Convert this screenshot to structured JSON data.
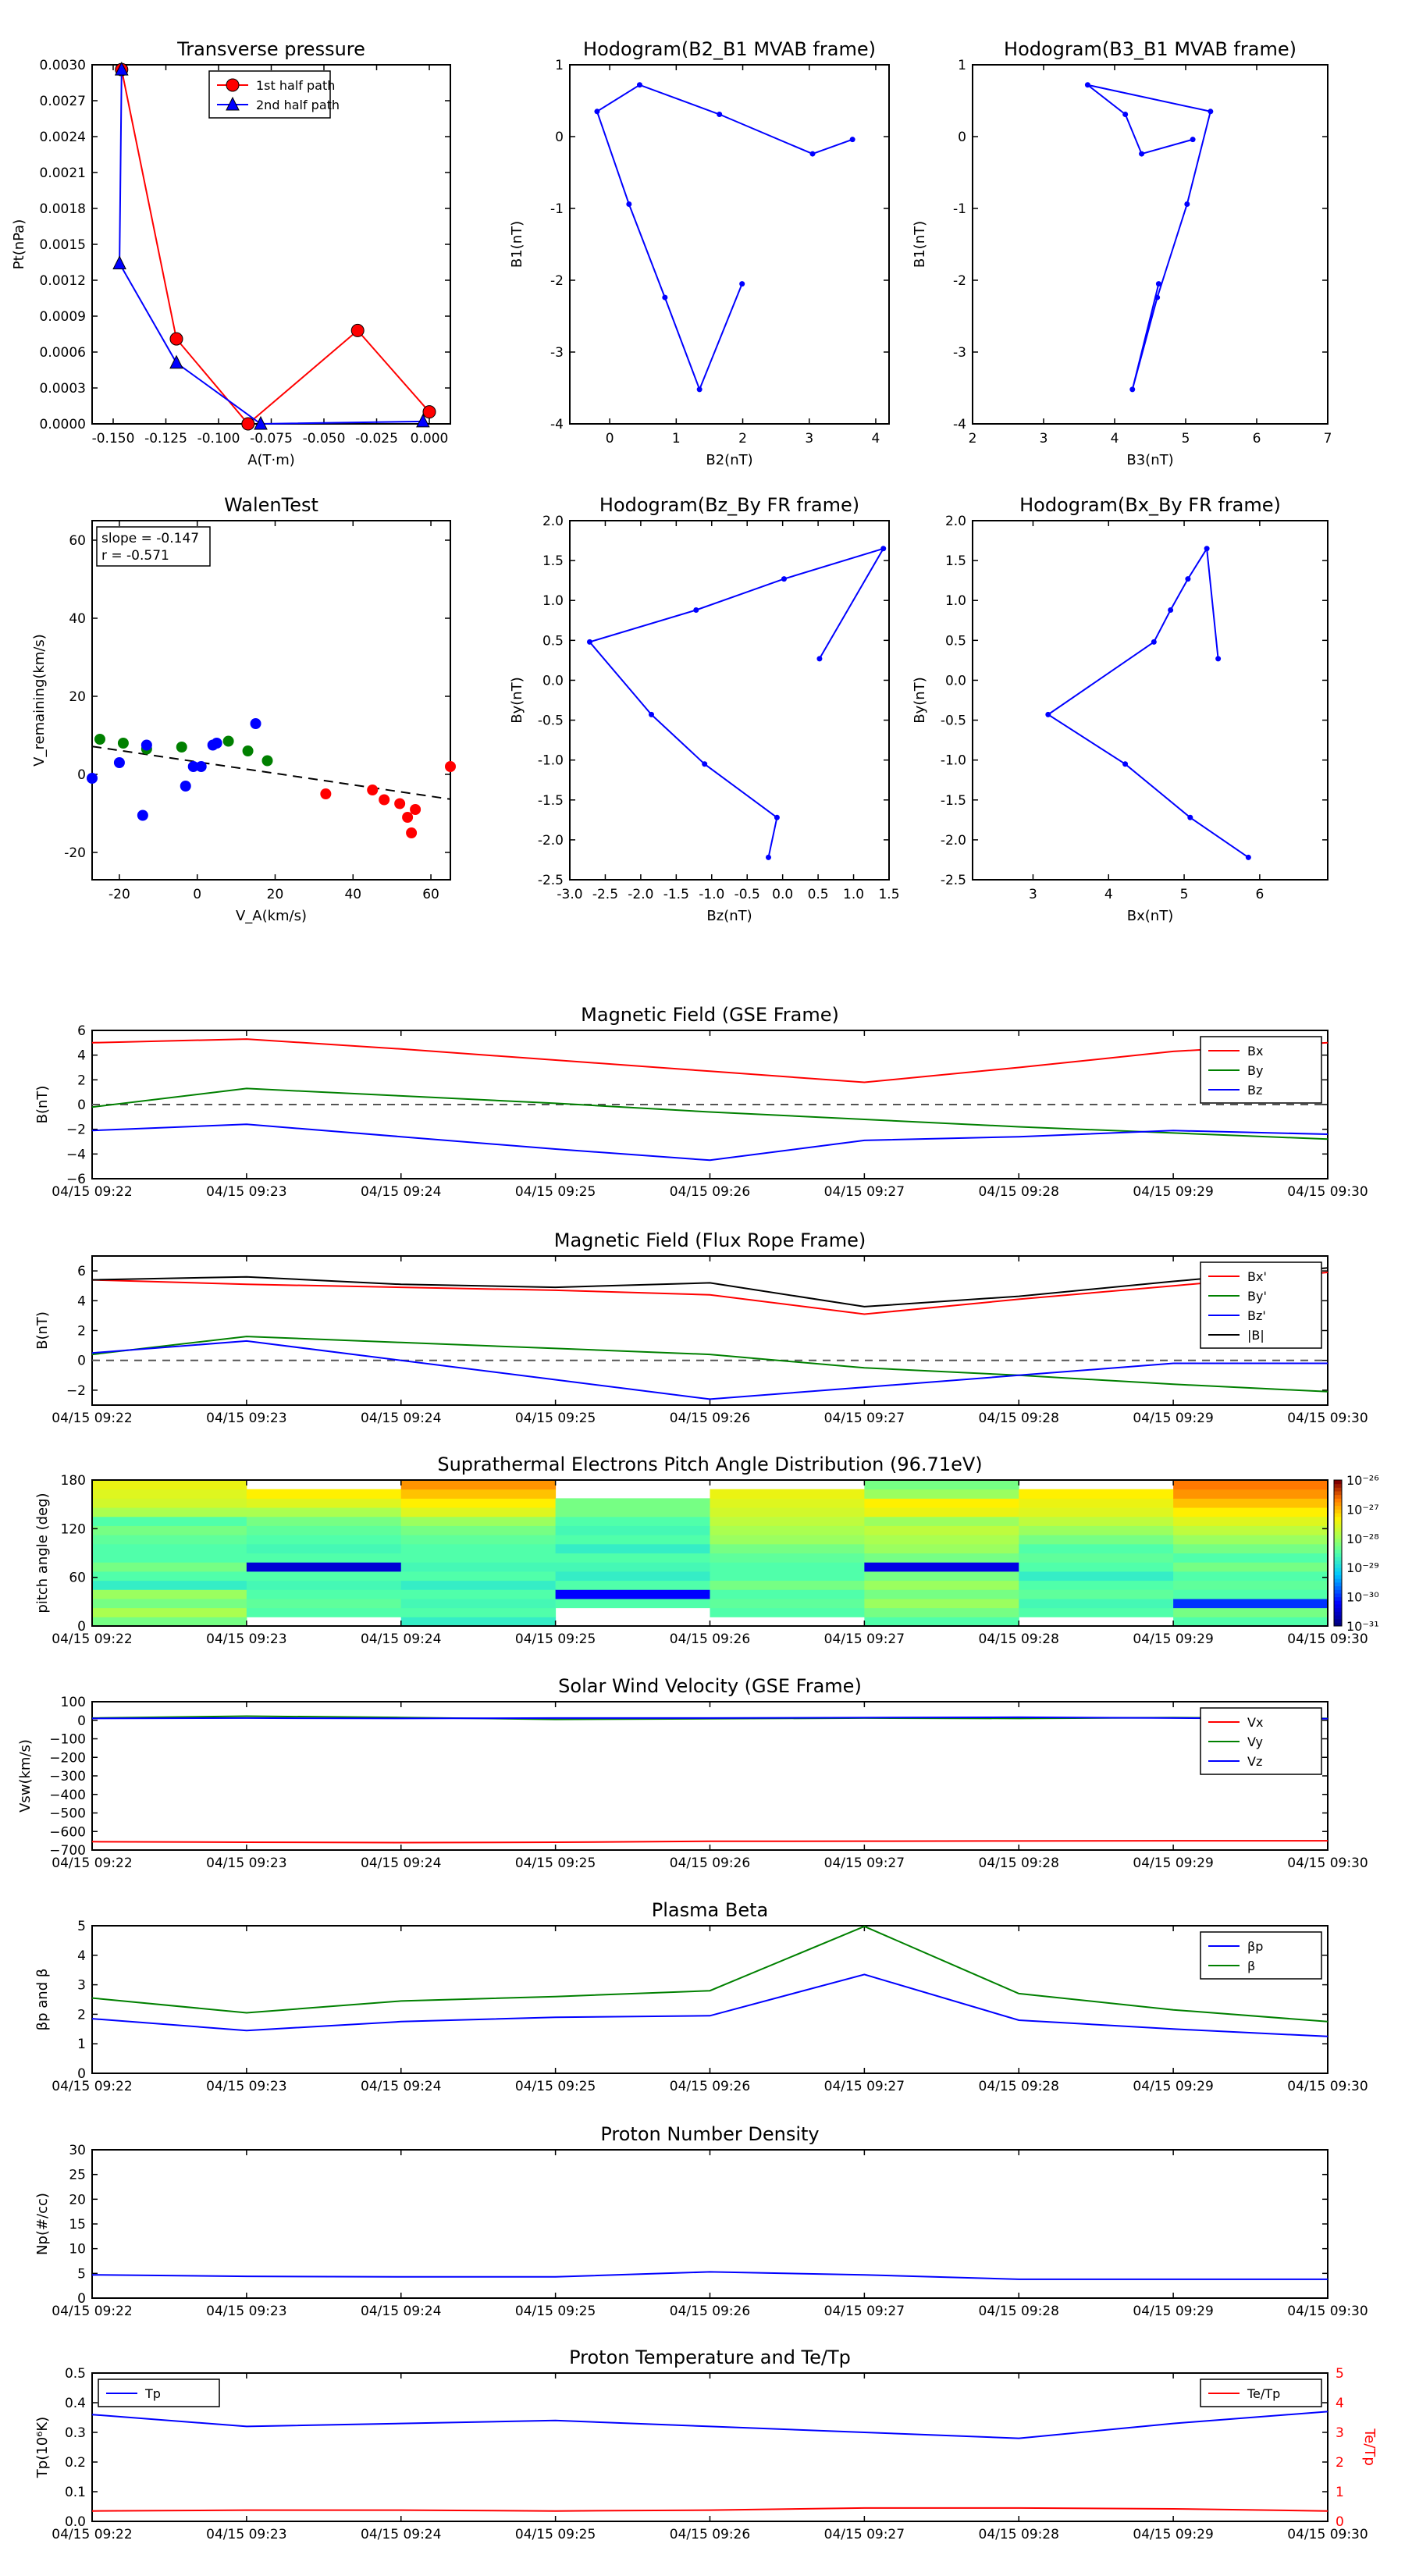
{
  "chart_data": [
    {
      "type": "line",
      "title": "Transverse pressure",
      "xlabel": "A(T·m)",
      "ylabel": "Pt(nPa)",
      "xlim": [
        -0.16,
        0.01
      ],
      "ylim": [
        0,
        0.003
      ],
      "xticks": [
        "-0.150",
        "-0.125",
        "-0.100",
        "-0.075",
        "-0.050",
        "-0.025",
        "0.000"
      ],
      "yticks": [
        "0.0000",
        "0.0003",
        "0.0006",
        "0.0009",
        "0.0012",
        "0.0015",
        "0.0018",
        "0.0021",
        "0.0024",
        "0.0027",
        "0.0030"
      ],
      "legend": {
        "position": "top-center",
        "entries": [
          "1st half path",
          "2nd half path"
        ]
      },
      "series": [
        {
          "name": "1st half path",
          "color": "#ff0000",
          "marker": "circle",
          "x": [
            0.0,
            -0.034,
            -0.086,
            -0.12,
            -0.146
          ],
          "y": [
            0.0001,
            0.00078,
            0.0,
            0.00071,
            0.00296
          ]
        },
        {
          "name": "2nd half path",
          "color": "#0000ff",
          "marker": "triangle",
          "x": [
            -0.146,
            -0.147,
            -0.12,
            -0.08,
            -0.003
          ],
          "y": [
            0.00296,
            0.00134,
            0.00051,
            0.0,
            2e-05
          ]
        }
      ]
    },
    {
      "type": "line",
      "title": "Hodogram(B2_B1 MVAB frame)",
      "xlabel": "B2(nT)",
      "ylabel": "B1(nT)",
      "xlim": [
        -0.6,
        4.2
      ],
      "ylim": [
        -4,
        1
      ],
      "xticks": [
        "0",
        "1",
        "2",
        "3",
        "4"
      ],
      "yticks": [
        "-4",
        "-3",
        "-2",
        "-1",
        "0",
        "1"
      ],
      "series": [
        {
          "color": "#0000ff",
          "x": [
            1.99,
            1.35,
            0.83,
            0.29,
            -0.19,
            0.45,
            1.65,
            3.05,
            3.65
          ],
          "y": [
            -2.05,
            -3.52,
            -2.24,
            -0.94,
            0.35,
            0.72,
            0.31,
            -0.24,
            -0.04
          ]
        }
      ]
    },
    {
      "type": "line",
      "title": "Hodogram(B3_B1 MVAB frame)",
      "xlabel": "B3(nT)",
      "ylabel": "B1(nT)",
      "xlim": [
        2,
        7
      ],
      "ylim": [
        -4,
        1
      ],
      "xticks": [
        "2",
        "3",
        "4",
        "5",
        "6",
        "7"
      ],
      "yticks": [
        "-4",
        "-3",
        "-2",
        "-1",
        "0",
        "1"
      ],
      "series": [
        {
          "color": "#0000ff",
          "x": [
            4.62,
            4.25,
            4.6,
            5.02,
            5.35,
            3.62,
            4.15,
            4.38,
            5.1
          ],
          "y": [
            -2.05,
            -3.52,
            -2.24,
            -0.94,
            0.35,
            0.72,
            0.31,
            -0.24,
            -0.04
          ]
        }
      ]
    },
    {
      "type": "scatter",
      "title": "WalenTest",
      "xlabel": "V_A(km/s)",
      "ylabel": "V_remaining(km/s)",
      "xlim": [
        -27,
        65
      ],
      "ylim": [
        -27,
        65
      ],
      "xticks": [
        "-20",
        "0",
        "20",
        "40",
        "60"
      ],
      "yticks": [
        "-20",
        "0",
        "20",
        "40",
        "60"
      ],
      "annotation": [
        "slope = -0.147",
        "r = -0.571"
      ],
      "fit_line": {
        "slope": -0.147,
        "intercept": 3.2,
        "color": "#000000",
        "style": "dashed"
      },
      "series": [
        {
          "color": "#008000",
          "x": [
            -25,
            -19,
            -13,
            -4,
            8,
            13,
            18
          ],
          "y": [
            9,
            8,
            6.5,
            7,
            8.5,
            6,
            3.5
          ]
        },
        {
          "color": "#0000ff",
          "x": [
            -27,
            -20,
            -14,
            -13,
            -3,
            -1,
            1,
            4,
            5,
            15
          ],
          "y": [
            -1,
            3,
            -10.5,
            7.5,
            -3,
            2,
            2,
            7.5,
            8,
            13
          ]
        },
        {
          "color": "#ff0000",
          "x": [
            33,
            45,
            48,
            52,
            54,
            55,
            56,
            65
          ],
          "y": [
            -5,
            -4,
            -6.5,
            -7.5,
            -11,
            -15,
            -9,
            2
          ]
        }
      ]
    },
    {
      "type": "line",
      "title": "Hodogram(Bz_By FR frame)",
      "xlabel": "Bz(nT)",
      "ylabel": "By(nT)",
      "xlim": [
        -3.0,
        1.5
      ],
      "ylim": [
        -2.5,
        2.0
      ],
      "xticks": [
        "-3.0",
        "-2.5",
        "-2.0",
        "-1.5",
        "-1.0",
        "-0.5",
        "0.0",
        "0.5",
        "1.0",
        "1.5"
      ],
      "yticks": [
        "-2.5",
        "-2.0",
        "-1.5",
        "-1.0",
        "-0.5",
        "0.0",
        "0.5",
        "1.0",
        "1.5",
        "2.0"
      ],
      "series": [
        {
          "color": "#0000ff",
          "x": [
            0.52,
            1.42,
            0.02,
            -1.22,
            -2.72,
            -1.85,
            -1.1,
            -0.08,
            -0.2
          ],
          "y": [
            0.27,
            1.65,
            1.27,
            0.88,
            0.48,
            -0.43,
            -1.05,
            -1.72,
            -2.22
          ]
        }
      ]
    },
    {
      "type": "line",
      "title": "Hodogram(Bx_By FR frame)",
      "xlabel": "Bx(nT)",
      "ylabel": "By(nT)",
      "xlim": [
        2.2,
        6.9
      ],
      "ylim": [
        -2.5,
        2.0
      ],
      "xticks": [
        "3",
        "4",
        "5",
        "6"
      ],
      "yticks": [
        "-2.5",
        "-2.0",
        "-1.5",
        "-1.0",
        "-0.5",
        "0.0",
        "0.5",
        "1.0",
        "1.5",
        "2.0"
      ],
      "series": [
        {
          "color": "#0000ff",
          "x": [
            5.45,
            5.3,
            5.05,
            4.82,
            4.6,
            3.2,
            4.22,
            5.08,
            5.85
          ],
          "y": [
            0.27,
            1.65,
            1.27,
            0.88,
            0.48,
            -0.43,
            -1.05,
            -1.72,
            -2.22
          ]
        }
      ]
    },
    {
      "type": "line",
      "title": "Magnetic Field (GSE Frame)",
      "ylabel": "B(nT)",
      "ylim": [
        -6,
        6
      ],
      "yticks": [
        "−6",
        "−4",
        "−2",
        "0",
        "2",
        "4",
        "6"
      ],
      "x": [
        "04/15 09:22",
        "04/15 09:23",
        "04/15 09:24",
        "04/15 09:25",
        "04/15 09:26",
        "04/15 09:27",
        "04/15 09:28",
        "04/15 09:29",
        "04/15 09:30"
      ],
      "zero_line": true,
      "legend": {
        "position": "right-top",
        "entries": [
          "Bx",
          "By",
          "Bz"
        ]
      },
      "series": [
        {
          "name": "Bx",
          "color": "#ff0000",
          "values": [
            5.0,
            5.3,
            4.5,
            3.6,
            2.7,
            1.8,
            3.0,
            4.3,
            5.0
          ]
        },
        {
          "name": "By",
          "color": "#008000",
          "values": [
            -0.2,
            1.3,
            0.7,
            0.1,
            -0.6,
            -1.2,
            -1.8,
            -2.3,
            -2.8
          ]
        },
        {
          "name": "Bz",
          "color": "#0000ff",
          "values": [
            -2.1,
            -1.6,
            -2.6,
            -3.6,
            -4.5,
            -2.9,
            -2.6,
            -2.1,
            -2.4
          ]
        }
      ]
    },
    {
      "type": "line",
      "title": "Magnetic Field (Flux Rope Frame)",
      "ylabel": "B(nT)",
      "ylim": [
        -3,
        7
      ],
      "yticks": [
        "−2",
        "0",
        "2",
        "4",
        "6"
      ],
      "x": [
        "04/15 09:22",
        "04/15 09:23",
        "04/15 09:24",
        "04/15 09:25",
        "04/15 09:26",
        "04/15 09:27",
        "04/15 09:28",
        "04/15 09:29",
        "04/15 09:30"
      ],
      "zero_line": true,
      "legend": {
        "position": "right-top",
        "entries": [
          "Bx'",
          "By'",
          "Bz'",
          "|B|"
        ]
      },
      "series": [
        {
          "name": "Bx'",
          "color": "#ff0000",
          "values": [
            5.4,
            5.1,
            4.9,
            4.7,
            4.4,
            3.1,
            4.1,
            5.0,
            5.9
          ]
        },
        {
          "name": "By'",
          "color": "#008000",
          "values": [
            0.4,
            1.6,
            1.2,
            0.8,
            0.4,
            -0.5,
            -1.0,
            -1.6,
            -2.1
          ]
        },
        {
          "name": "Bz'",
          "color": "#0000ff",
          "values": [
            0.5,
            1.3,
            0.0,
            -1.3,
            -2.6,
            -1.8,
            -1.0,
            -0.2,
            -0.2
          ]
        },
        {
          "name": "|B|",
          "color": "#000000",
          "values": [
            5.4,
            5.6,
            5.1,
            4.9,
            5.2,
            3.6,
            4.3,
            5.3,
            6.2
          ]
        }
      ]
    },
    {
      "type": "heatmap",
      "title": "Suprathermal Electrons Pitch Angle Distribution (96.71eV)",
      "ylabel": "pitch angle (deg)",
      "ylim": [
        0,
        180
      ],
      "yticks": [
        "0",
        "60",
        "120",
        "180"
      ],
      "x": [
        "04/15 09:22",
        "04/15 09:23",
        "04/15 09:24",
        "04/15 09:25",
        "04/15 09:26",
        "04/15 09:27",
        "04/15 09:28",
        "04/15 09:29",
        "04/15 09:30"
      ],
      "colorbar_ticks": [
        "10⁻²⁶",
        "10⁻²⁷",
        "10⁻²⁸",
        "10⁻²⁹",
        "10⁻³⁰",
        "10⁻³¹"
      ],
      "columns": [
        {
          "level": [
            0.55,
            0.62,
            0.55,
            0.6,
            0.45,
            0.5,
            0.55,
            0.5,
            0.5,
            0.52,
            0.55,
            0.5,
            0.62,
            0.68,
            0.7,
            0.72
          ],
          "gaps": []
        },
        {
          "level": [
            null,
            0.5,
            0.52,
            0.5,
            0.48,
            0.5,
            0.1,
            0.5,
            0.48,
            0.5,
            0.52,
            0.55,
            0.62,
            0.7,
            0.75,
            null
          ],
          "gaps": [
            0,
            15
          ]
        },
        {
          "level": [
            0.45,
            0.5,
            0.48,
            0.5,
            0.45,
            0.5,
            0.48,
            0.5,
            0.5,
            0.52,
            0.55,
            0.6,
            0.7,
            0.75,
            0.8,
            0.85
          ],
          "gaps": []
        },
        {
          "level": [
            null,
            null,
            0.5,
            0.15,
            0.5,
            0.45,
            0.48,
            0.5,
            0.45,
            0.5,
            0.48,
            0.5,
            0.55,
            0.55,
            null,
            null
          ],
          "gaps": [
            0,
            1,
            14,
            15
          ]
        },
        {
          "level": [
            null,
            0.5,
            0.52,
            0.5,
            0.55,
            0.5,
            0.5,
            0.52,
            0.55,
            0.6,
            0.62,
            0.65,
            0.68,
            0.7,
            0.72,
            null
          ],
          "gaps": [
            0,
            15
          ]
        },
        {
          "level": [
            0.5,
            0.55,
            0.6,
            0.55,
            0.6,
            0.55,
            0.12,
            0.55,
            0.6,
            0.62,
            0.65,
            0.6,
            0.72,
            0.75,
            0.6,
            0.55
          ],
          "gaps": []
        },
        {
          "level": [
            null,
            0.5,
            0.48,
            0.52,
            0.5,
            0.45,
            0.5,
            0.52,
            0.5,
            0.55,
            0.6,
            0.65,
            0.7,
            0.72,
            0.75,
            null
          ],
          "gaps": [
            0,
            15
          ]
        },
        {
          "level": [
            0.5,
            0.55,
            0.2,
            0.5,
            0.52,
            0.5,
            0.55,
            0.5,
            0.55,
            0.6,
            0.65,
            0.7,
            0.75,
            0.8,
            0.85,
            0.88
          ],
          "gaps": []
        }
      ]
    },
    {
      "type": "line",
      "title": "Solar Wind Velocity (GSE Frame)",
      "ylabel": "Vsw(km/s)",
      "ylim": [
        -700,
        100
      ],
      "yticks": [
        "−700",
        "−600",
        "−500",
        "−400",
        "−300",
        "−200",
        "−100",
        "0",
        "100"
      ],
      "x": [
        "04/15 09:22",
        "04/15 09:23",
        "04/15 09:24",
        "04/15 09:25",
        "04/15 09:26",
        "04/15 09:27",
        "04/15 09:28",
        "04/15 09:29",
        "04/15 09:30"
      ],
      "legend": {
        "position": "right-top",
        "entries": [
          "Vx",
          "Vy",
          "Vz"
        ]
      },
      "series": [
        {
          "name": "Vx",
          "color": "#ff0000",
          "values": [
            -655,
            -658,
            -660,
            -658,
            -653,
            -652,
            -651,
            -650,
            -650
          ]
        },
        {
          "name": "Vy",
          "color": "#008000",
          "values": [
            12,
            22,
            15,
            5,
            8,
            12,
            10,
            14,
            10
          ]
        },
        {
          "name": "Vz",
          "color": "#0000ff",
          "values": [
            10,
            12,
            10,
            12,
            12,
            14,
            16,
            12,
            8
          ]
        }
      ]
    },
    {
      "type": "line",
      "title": "Plasma Beta",
      "ylabel": "βp and β",
      "ylim": [
        0,
        5
      ],
      "yticks": [
        "0",
        "1",
        "2",
        "3",
        "4",
        "5"
      ],
      "x": [
        "04/15 09:22",
        "04/15 09:23",
        "04/15 09:24",
        "04/15 09:25",
        "04/15 09:26",
        "04/15 09:27",
        "04/15 09:28",
        "04/15 09:29",
        "04/15 09:30"
      ],
      "legend": {
        "position": "right-top",
        "entries": [
          "βp",
          "β"
        ]
      },
      "series": [
        {
          "name": "βp",
          "color": "#0000ff",
          "values": [
            1.85,
            1.45,
            1.75,
            1.9,
            1.95,
            3.35,
            1.8,
            1.5,
            1.25
          ]
        },
        {
          "name": "β",
          "color": "#008000",
          "values": [
            2.55,
            2.05,
            2.45,
            2.6,
            2.8,
            4.98,
            2.7,
            2.15,
            1.75
          ]
        }
      ]
    },
    {
      "type": "line",
      "title": "Proton Number Density",
      "ylabel": "Np(#/cc)",
      "ylim": [
        0,
        30
      ],
      "yticks": [
        "0",
        "5",
        "10",
        "15",
        "20",
        "25",
        "30"
      ],
      "x": [
        "04/15 09:22",
        "04/15 09:23",
        "04/15 09:24",
        "04/15 09:25",
        "04/15 09:26",
        "04/15 09:27",
        "04/15 09:28",
        "04/15 09:29",
        "04/15 09:30"
      ],
      "series": [
        {
          "color": "#0000ff",
          "values": [
            4.7,
            4.4,
            4.3,
            4.3,
            5.3,
            4.7,
            3.8,
            3.8,
            3.8
          ]
        }
      ]
    },
    {
      "type": "line",
      "title": "Proton Temperature and Te/Tp",
      "ylabel": "Tp(10⁶K)",
      "ylabel_right": "Te/Tp",
      "ylim": [
        0,
        0.5
      ],
      "ylim_right": [
        0,
        5
      ],
      "yticks": [
        "0.0",
        "0.1",
        "0.2",
        "0.3",
        "0.4",
        "0.5"
      ],
      "yticks_right": [
        "0",
        "1",
        "2",
        "3",
        "4",
        "5"
      ],
      "x": [
        "04/15 09:22",
        "04/15 09:23",
        "04/15 09:24",
        "04/15 09:25",
        "04/15 09:26",
        "04/15 09:27",
        "04/15 09:28",
        "04/15 09:29",
        "04/15 09:30"
      ],
      "legend": {
        "position": "top-left",
        "entries": [
          "Tp"
        ]
      },
      "legend_right": {
        "position": "top-right",
        "entries": [
          "Te/Tp"
        ]
      },
      "series": [
        {
          "name": "Tp",
          "color": "#0000ff",
          "axis": "left",
          "values": [
            0.36,
            0.32,
            0.33,
            0.34,
            0.32,
            0.3,
            0.28,
            0.33,
            0.37
          ]
        },
        {
          "name": "Te/Tp",
          "color": "#ff0000",
          "axis": "right",
          "values": [
            0.35,
            0.38,
            0.38,
            0.35,
            0.38,
            0.45,
            0.45,
            0.42,
            0.35
          ]
        }
      ]
    }
  ]
}
